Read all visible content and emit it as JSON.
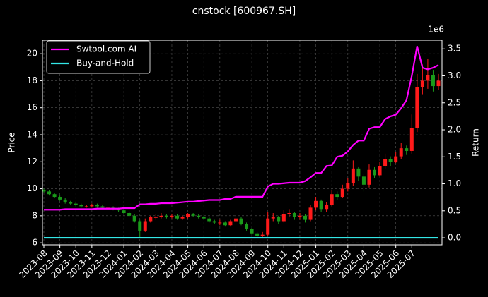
{
  "chart_data": {
    "type": "candlestick",
    "title": "cnstock [600967.SH]",
    "ylabel": "Price",
    "y2label": "Return",
    "y2_offset_label": "1e6",
    "categories": [
      "2023-08",
      null,
      null,
      "2023-09",
      null,
      null,
      "2023-10",
      null,
      null,
      "2023-11",
      null,
      null,
      "2023-12",
      null,
      null,
      "2024-01",
      null,
      null,
      "2024-02",
      null,
      null,
      "2024-03",
      null,
      null,
      "2024-04",
      null,
      null,
      "2024-05",
      null,
      null,
      "2024-06",
      null,
      null,
      "2024-07",
      null,
      null,
      "2024-08",
      null,
      null,
      "2024-09",
      null,
      null,
      "2024-10",
      null,
      null,
      "2024-11",
      null,
      null,
      "2024-12",
      null,
      null,
      "2025-01",
      null,
      null,
      "2025-02",
      null,
      null,
      "2025-03",
      null,
      null,
      "2025-04",
      null,
      null,
      "2025-05",
      null,
      null,
      "2025-06",
      null,
      null,
      "2025-07",
      null,
      null,
      null,
      null,
      null
    ],
    "candles": {
      "open": [
        9.9,
        9.8,
        9.6,
        9.4,
        9.2,
        9.0,
        8.9,
        8.8,
        8.7,
        8.7,
        8.8,
        8.7,
        8.6,
        8.6,
        8.5,
        8.4,
        8.2,
        8.0,
        7.6,
        6.9,
        7.6,
        7.9,
        7.9,
        8.0,
        7.9,
        8.0,
        7.8,
        7.9,
        8.1,
        8.0,
        7.9,
        7.8,
        7.6,
        7.5,
        7.5,
        7.3,
        7.6,
        7.8,
        7.4,
        7.0,
        6.7,
        6.5,
        6.6,
        7.8,
        7.9,
        7.6,
        8.1,
        8.2,
        7.9,
        8.0,
        7.7,
        8.6,
        9.1,
        8.5,
        8.8,
        9.6,
        9.4,
        10.0,
        10.4,
        11.5,
        10.9,
        10.3,
        11.4,
        11.0,
        11.7,
        12.2,
        12.0,
        12.4,
        13.0,
        12.8,
        14.5,
        17.5,
        18.0,
        18.4,
        17.6
      ],
      "high": [
        10.0,
        9.9,
        9.7,
        9.5,
        9.3,
        9.1,
        9.0,
        8.9,
        8.8,
        8.9,
        8.9,
        8.8,
        8.7,
        8.7,
        8.6,
        8.5,
        8.3,
        8.1,
        7.7,
        7.8,
        8.0,
        8.1,
        8.2,
        8.1,
        8.1,
        8.1,
        8.0,
        8.2,
        8.2,
        8.1,
        8.0,
        7.9,
        7.7,
        7.7,
        7.6,
        7.7,
        8.0,
        7.9,
        7.5,
        7.1,
        6.8,
        6.8,
        8.3,
        8.2,
        8.0,
        8.4,
        8.5,
        8.3,
        8.2,
        8.1,
        8.8,
        9.4,
        9.2,
        9.0,
        9.9,
        9.8,
        10.3,
        10.8,
        12.1,
        11.6,
        11.1,
        11.8,
        11.6,
        12.0,
        12.6,
        12.4,
        12.7,
        13.4,
        13.2,
        15.5,
        18.5,
        19.2,
        19.6,
        18.8,
        18.5
      ],
      "low": [
        9.7,
        9.5,
        9.3,
        9.1,
        8.9,
        8.8,
        8.7,
        8.6,
        8.6,
        8.6,
        8.6,
        8.5,
        8.5,
        8.4,
        8.3,
        8.1,
        7.9,
        7.5,
        6.4,
        6.8,
        7.5,
        7.7,
        7.8,
        7.8,
        7.8,
        7.7,
        7.7,
        7.8,
        7.9,
        7.8,
        7.7,
        7.5,
        7.4,
        7.3,
        7.2,
        7.2,
        7.5,
        7.3,
        6.9,
        6.6,
        6.4,
        6.4,
        6.5,
        7.6,
        7.4,
        7.5,
        7.9,
        7.7,
        7.7,
        7.5,
        7.6,
        8.4,
        8.3,
        8.3,
        8.7,
        9.2,
        9.3,
        9.8,
        10.2,
        10.6,
        9.8,
        10.1,
        10.8,
        10.9,
        11.5,
        11.7,
        11.9,
        12.2,
        12.5,
        12.6,
        14.2,
        17.0,
        17.4,
        17.2,
        17.3
      ],
      "close": [
        9.8,
        9.6,
        9.4,
        9.2,
        9.0,
        8.9,
        8.8,
        8.7,
        8.7,
        8.8,
        8.7,
        8.6,
        8.6,
        8.5,
        8.4,
        8.2,
        8.0,
        7.6,
        6.9,
        7.6,
        7.9,
        7.9,
        8.0,
        7.9,
        8.0,
        7.8,
        7.9,
        8.1,
        8.0,
        7.9,
        7.8,
        7.6,
        7.5,
        7.5,
        7.3,
        7.6,
        7.8,
        7.4,
        7.0,
        6.7,
        6.5,
        6.6,
        7.8,
        7.9,
        7.6,
        8.1,
        8.2,
        7.9,
        8.0,
        7.7,
        8.6,
        9.1,
        8.5,
        8.8,
        9.6,
        9.4,
        10.0,
        10.4,
        11.5,
        10.9,
        10.3,
        11.4,
        11.0,
        11.7,
        12.2,
        12.0,
        12.4,
        13.0,
        12.8,
        14.5,
        17.5,
        18.0,
        18.4,
        17.6,
        18.0
      ]
    },
    "up_color": "#ff1a1a",
    "down_color": "#1a9a1a",
    "series": [
      {
        "name": "Swtool.com AI",
        "color": "#ff00ff",
        "axis": "y2",
        "values": [
          0.52,
          0.52,
          0.52,
          0.52,
          0.53,
          0.53,
          0.53,
          0.53,
          0.53,
          0.53,
          0.54,
          0.54,
          0.54,
          0.54,
          0.54,
          0.55,
          0.55,
          0.55,
          0.62,
          0.62,
          0.63,
          0.63,
          0.64,
          0.64,
          0.64,
          0.65,
          0.66,
          0.67,
          0.67,
          0.68,
          0.69,
          0.7,
          0.7,
          0.7,
          0.72,
          0.72,
          0.76,
          0.76,
          0.76,
          0.76,
          0.76,
          0.76,
          0.95,
          1.0,
          1.0,
          1.01,
          1.02,
          1.02,
          1.02,
          1.05,
          1.12,
          1.2,
          1.2,
          1.33,
          1.34,
          1.5,
          1.52,
          1.6,
          1.72,
          1.8,
          1.8,
          2.02,
          2.05,
          2.05,
          2.2,
          2.25,
          2.28,
          2.4,
          2.55,
          3.0,
          3.55,
          3.15,
          3.12,
          3.15,
          3.2
        ]
      },
      {
        "name": "Buy-and-Hold",
        "color": "#33e6e6",
        "axis": "y2",
        "values": [
          0,
          0,
          0,
          0,
          0,
          0,
          0,
          0,
          0,
          0,
          0,
          0,
          0,
          0,
          0,
          0,
          0,
          0,
          0,
          0,
          0,
          0,
          0,
          0,
          0,
          0,
          0,
          0,
          0,
          0,
          0,
          0,
          0,
          0,
          0,
          0,
          0,
          0,
          0,
          0,
          0,
          0,
          0,
          0,
          0,
          0,
          0,
          0,
          0,
          0,
          0,
          0,
          0,
          0,
          0,
          0,
          0,
          0,
          0,
          0,
          0,
          0,
          0,
          0,
          0,
          0,
          0,
          0,
          0,
          0,
          0,
          0,
          0,
          0,
          0
        ]
      }
    ],
    "ylim": [
      5.85,
      21.0
    ],
    "yticks": [
      6,
      8,
      10,
      12,
      14,
      16,
      18,
      20
    ],
    "y2lim": [
      -0.13,
      3.66
    ],
    "y2ticks": [
      {
        "value": 0,
        "label": "0.0"
      },
      0.5,
      {
        "value": 1,
        "label": "1.0"
      },
      1.5,
      {
        "value": 2,
        "label": "2.0"
      },
      2.5,
      {
        "value": 3,
        "label": "3.0"
      },
      3.5
    ],
    "grid": true,
    "legend": "upper left"
  }
}
